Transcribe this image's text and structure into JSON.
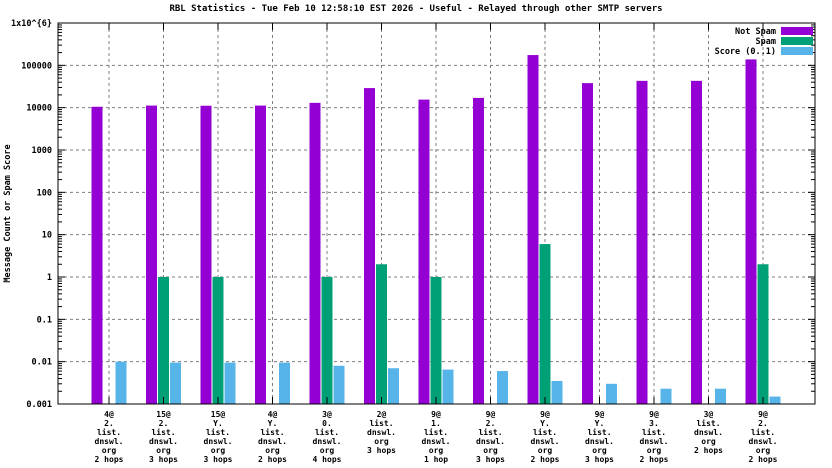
{
  "title": "RBL Statistics - Tue Feb 10 12:58:10 EST 2026 - Useful - Relayed through other SMTP servers",
  "y_axis": {
    "label": "Message Count or Spam Score",
    "tick_labels": [
      "1x10^{6}",
      "100000",
      "10000",
      "1000",
      "100",
      "10",
      "1",
      "0.1",
      "0.01",
      "0.001"
    ]
  },
  "legend": {
    "position": "top-right",
    "entries": [
      {
        "label": "Not Spam",
        "color": "#9400d3"
      },
      {
        "label": "Spam",
        "color": "#00a077"
      },
      {
        "label": "Score (0..1)",
        "color": "#56b4e9"
      }
    ]
  },
  "chart_data": {
    "type": "bar",
    "scale": "log",
    "title": "RBL Statistics - Tue Feb 10 12:58:10 EST 2026 - Useful - Relayed through other SMTP servers",
    "xlabel": "",
    "ylabel": "Message Count or Spam Score",
    "ylim": [
      0.001,
      1000000
    ],
    "grid": true,
    "legend_position": "top-right",
    "categories": [
      [
        "4@",
        "2.",
        "list.",
        "dnswl.",
        "org",
        "2 hops"
      ],
      [
        "15@",
        "2.",
        "list.",
        "dnswl.",
        "org",
        "3 hops"
      ],
      [
        "15@",
        "Y.",
        "list.",
        "dnswl.",
        "org",
        "3 hops"
      ],
      [
        "4@",
        "Y.",
        "list.",
        "dnswl.",
        "org",
        "2 hops"
      ],
      [
        "3@",
        "0.",
        "list.",
        "dnswl.",
        "org",
        "4 hops"
      ],
      [
        "2@",
        "list.",
        "dnswl.",
        "org",
        "3 hops"
      ],
      [
        "9@",
        "1.",
        "list.",
        "dnswl.",
        "org",
        "1 hop"
      ],
      [
        "9@",
        "2.",
        "list.",
        "dnswl.",
        "org",
        "3 hops"
      ],
      [
        "9@",
        "Y.",
        "list.",
        "dnswl.",
        "org",
        "2 hops"
      ],
      [
        "9@",
        "Y.",
        "list.",
        "dnswl.",
        "org",
        "3 hops"
      ],
      [
        "9@",
        "3.",
        "list.",
        "dnswl.",
        "org",
        "2 hops"
      ],
      [
        "3@",
        "list.",
        "dnswl.",
        "org",
        "2 hops"
      ],
      [
        "9@",
        "2.",
        "list.",
        "dnswl.",
        "org",
        "2 hops"
      ]
    ],
    "series": [
      {
        "name": "Not Spam",
        "color": "#9400d3",
        "values": [
          10500,
          11200,
          11100,
          11200,
          13000,
          29000,
          15500,
          17000,
          175000,
          38000,
          43000,
          43000,
          138000
        ]
      },
      {
        "name": "Spam",
        "color": "#00a077",
        "values": [
          null,
          1,
          1,
          null,
          1,
          2,
          1,
          null,
          6,
          null,
          null,
          null,
          2
        ]
      },
      {
        "name": "Score (0..1)",
        "color": "#56b4e9",
        "values": [
          0.01,
          0.0095,
          0.0095,
          0.0095,
          0.008,
          0.007,
          0.0065,
          0.006,
          0.0035,
          0.003,
          0.0023,
          0.0023,
          0.0015
        ]
      }
    ]
  },
  "colors": {
    "grid": "#7f7f7f",
    "border": "#000000",
    "background": "#ffffff"
  }
}
